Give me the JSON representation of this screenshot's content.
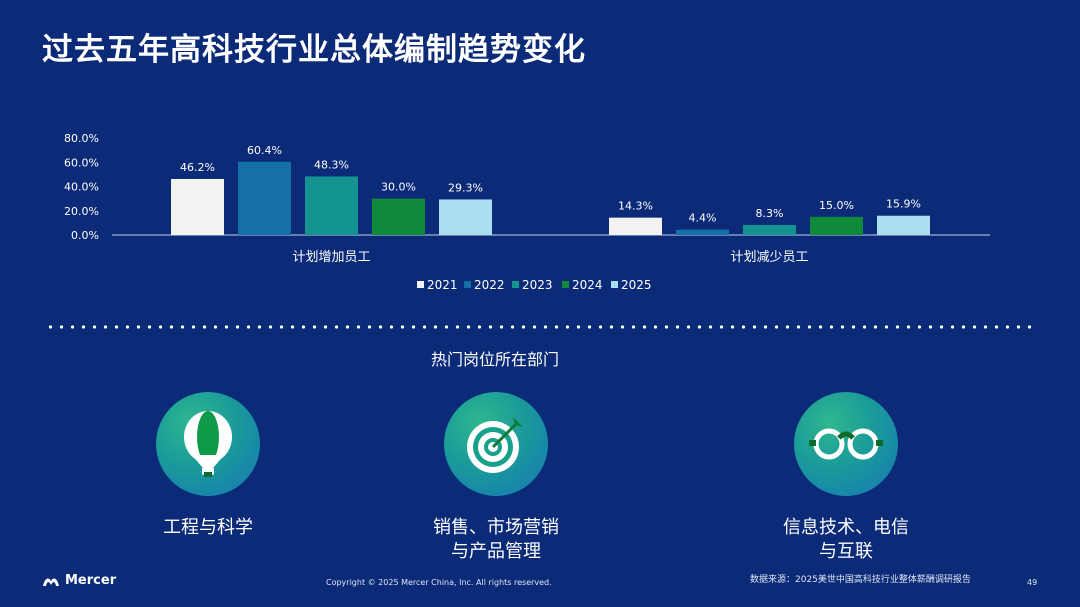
{
  "title": "过去五年高科技行业总体编制趋势变化",
  "chart_data": {
    "type": "bar",
    "categories": [
      "计划增加员工",
      "计划减少员工"
    ],
    "series": [
      {
        "name": "2021",
        "color": "#f2f2f2",
        "values": [
          46.2,
          14.3
        ],
        "labels": [
          "46.2%",
          "14.3%"
        ]
      },
      {
        "name": "2022",
        "color": "#1470a6",
        "values": [
          60.4,
          4.4
        ],
        "labels": [
          "60.4%",
          "4.4%"
        ]
      },
      {
        "name": "2023",
        "color": "#139491",
        "values": [
          48.3,
          8.3
        ],
        "labels": [
          "48.3%",
          "8.3%"
        ]
      },
      {
        "name": "2024",
        "color": "#0f8a3a",
        "values": [
          30.0,
          15.0
        ],
        "labels": [
          "30.0%",
          "15.0%"
        ]
      },
      {
        "name": "2025",
        "color": "#a9def0",
        "values": [
          29.3,
          15.9
        ],
        "labels": [
          "29.3%",
          "15.9%"
        ]
      }
    ],
    "y_ticks": [
      "0.0%",
      "20.0%",
      "40.0%",
      "60.0%",
      "80.0%"
    ],
    "ylim": [
      0,
      80
    ],
    "legend_position": "bottom-center"
  },
  "section_title": "热门岗位所在部门",
  "departments": [
    {
      "icon": "hot-air-balloon-icon",
      "label": "工程与科学"
    },
    {
      "icon": "target-icon",
      "label": "销售、市场营销\n与产品管理"
    },
    {
      "icon": "glasses-icon",
      "label": "信息技术、电信\n与互联"
    }
  ],
  "footer": {
    "brand": "Mercer",
    "copyright": "Copyright © 2025 Mercer China, Inc. All rights reserved.",
    "source": "数据来源：2025美世中国高科技行业整体薪酬调研报告",
    "page": "49"
  }
}
